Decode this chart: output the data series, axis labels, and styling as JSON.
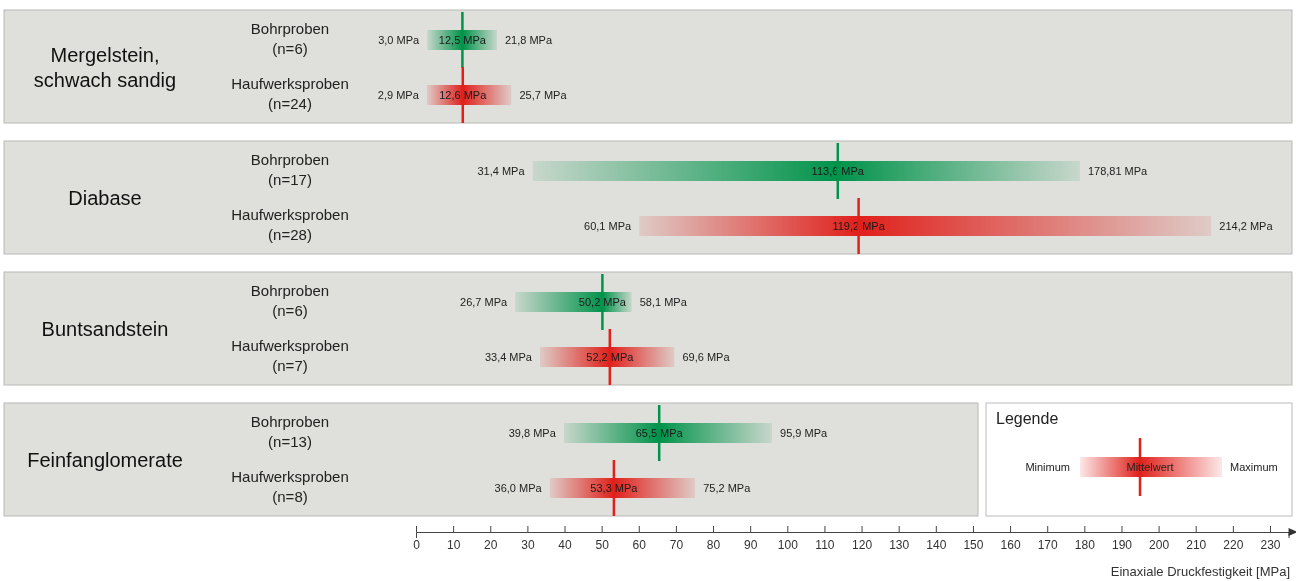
{
  "chart_data": {
    "type": "bar",
    "orientation": "horizontal",
    "xlabel": "Einaxiale Druckfestigkeit [MPa]",
    "legend_title": "Legende",
    "xlim": [
      0,
      235
    ],
    "xticks": [
      0,
      10,
      20,
      30,
      40,
      50,
      60,
      70,
      80,
      90,
      100,
      110,
      120,
      130,
      140,
      150,
      160,
      170,
      180,
      190,
      200,
      210,
      220,
      230
    ],
    "categories": [
      "Bohrproben\n(n=6)",
      "Haufwerksproben\n(n=24)",
      "Bohrproben\n(n=17)",
      "Haufwerksproben\n(n=28)",
      "Bohrproben\n(n=6)",
      "Haufwerksproben\n(n=7)",
      "Bohrproben\n(n=13)",
      "Haufwerksproben\n(n=8)"
    ],
    "series": [
      {
        "colors": [
          "#00934a",
          "#e0201b",
          "#00934a",
          "#e0201b",
          "#00934a",
          "#e0201b",
          "#00934a",
          "#e0201b"
        ],
        "base": [
          3.0,
          2.9,
          31.4,
          60.1,
          26.7,
          33.4,
          39.8,
          36.0
        ],
        "values": [
          18.8,
          22.8,
          147.41,
          154.1,
          31.4,
          36.2,
          56.1,
          39.2
        ]
      },
      {
        "type": "scatter",
        "colors": [
          "#00934a",
          "#e0201b",
          "#00934a",
          "#e0201b",
          "#00934a",
          "#e0201b",
          "#00934a",
          "#e0201b"
        ],
        "values": [
          12.5,
          12.6,
          113.6,
          119.2,
          50.2,
          52.2,
          65.5,
          53.3
        ],
        "value_labels": [
          "12,5 MPa",
          "12,6 MPa",
          "113,6 MPa",
          "119,2 MPa",
          "50,2 MPa",
          "52,2 MPa",
          "65,5 MPa",
          "53,3 MPa"
        ]
      }
    ],
    "annotations": [
      "Mergelstein,\nschwach sandig",
      "Diabase",
      "Buntsandstein",
      "Feinfanglomerate",
      "Minimum",
      "Mittelwert",
      "Maximum",
      "3,0 MPa",
      "21,8 MPa",
      "2,9 MPa",
      "25,7 MPa",
      "31,4 MPa",
      "178,81 MPa",
      "60,1 MPa",
      "214,2 MPa",
      "26,7 MPa",
      "58,1 MPa",
      "33,4 MPa",
      "69,6 MPa",
      "39,8 MPa",
      "95,9 MPa",
      "36,0 MPa",
      "75,2 MPa"
    ]
  }
}
